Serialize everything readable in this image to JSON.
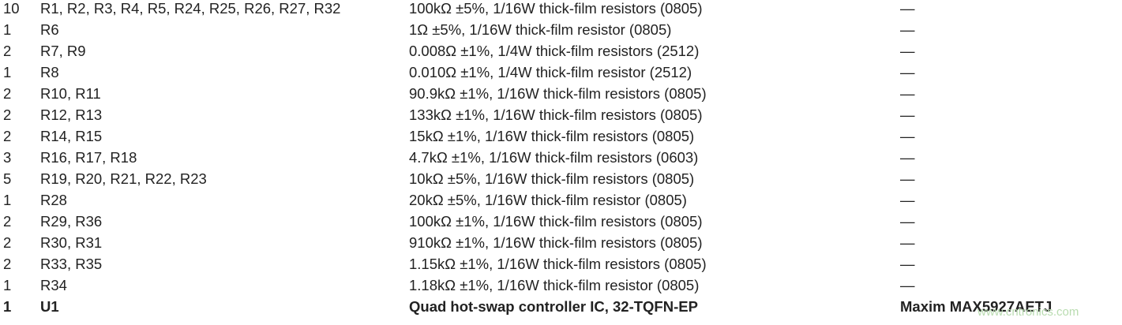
{
  "table": {
    "rows": [
      [
        "10",
        "R1, R2, R3, R4, R5, R24, R25, R26, R27, R32",
        "100kΩ ±5%, 1/16W thick-film resistors (0805)",
        "—"
      ],
      [
        "1",
        "R6",
        "1Ω ±5%, 1/16W thick-film resistor (0805)",
        "—"
      ],
      [
        "2",
        "R7, R9",
        "0.008Ω ±1%, 1/4W thick-film resistors (2512)",
        "—"
      ],
      [
        "1",
        "R8",
        "0.010Ω ±1%, 1/4W thick-film resistor (2512)",
        "—"
      ],
      [
        "2",
        "R10, R11",
        "90.9kΩ ±1%, 1/16W thick-film resistors (0805)",
        "—"
      ],
      [
        "2",
        "R12, R13",
        "133kΩ ±1%, 1/16W thick-film resistors (0805)",
        "—"
      ],
      [
        "2",
        "R14, R15",
        "15kΩ ±1%, 1/16W thick-film resistors (0805)",
        "—"
      ],
      [
        "3",
        "R16, R17, R18",
        "4.7kΩ ±1%, 1/16W thick-film resistors (0603)",
        "—"
      ],
      [
        "5",
        "R19, R20, R21, R22, R23",
        "10kΩ ±5%, 1/16W thick-film resistors (0805)",
        "—"
      ],
      [
        "1",
        "R28",
        "20kΩ ±5%, 1/16W thick-film resistor (0805)",
        "—"
      ],
      [
        "2",
        "R29, R36",
        "100kΩ ±1%, 1/16W thick-film resistors (0805)",
        "—"
      ],
      [
        "2",
        "R30, R31",
        "910kΩ ±1%, 1/16W thick-film resistors (0805)",
        "—"
      ],
      [
        "2",
        "R33, R35",
        "1.15kΩ ±1%, 1/16W thick-film resistors (0805)",
        "—"
      ],
      [
        "1",
        "R34",
        "1.18kΩ ±1%, 1/16W thick-film resistor (0805)",
        "—"
      ],
      [
        "1",
        "U1",
        "Quad hot-swap controller IC, 32-TQFN-EP",
        "Maxim MAX5927AETJ"
      ]
    ]
  },
  "watermark": "www.cntronics.com"
}
